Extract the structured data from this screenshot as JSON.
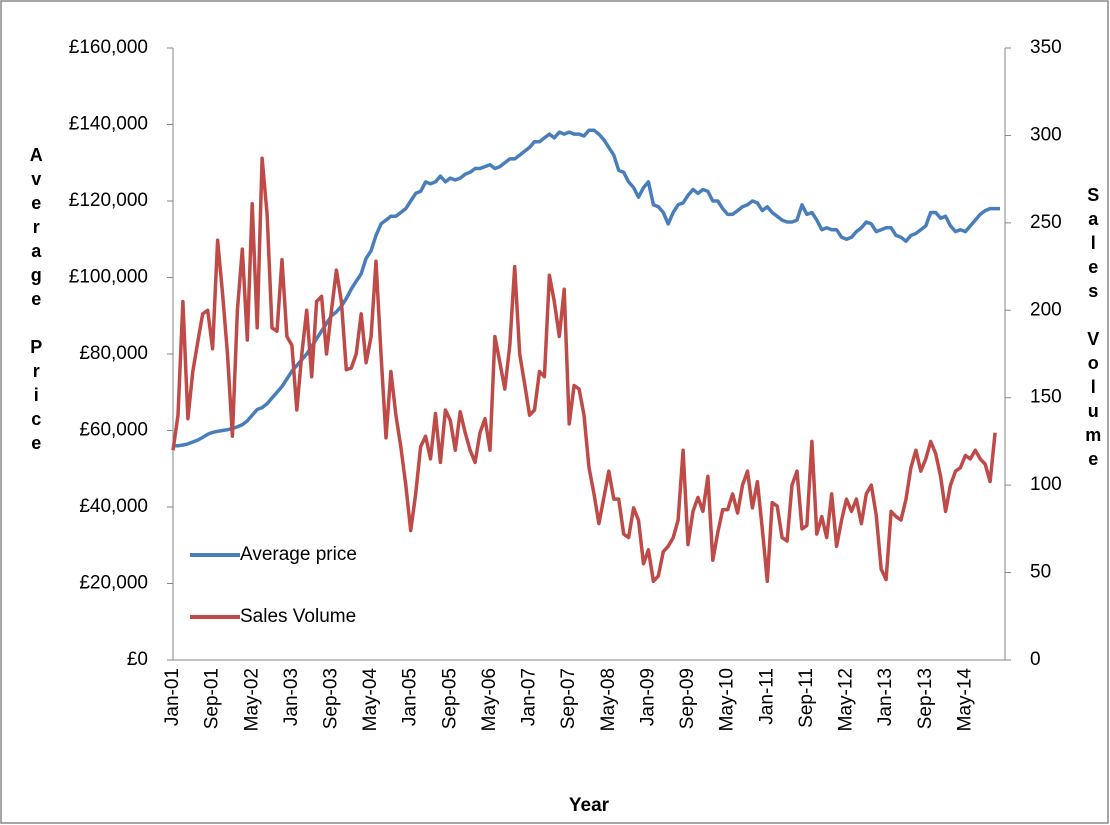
{
  "chart_data": {
    "type": "line",
    "x_label": "Year",
    "y_label": "Average Price",
    "y2_label": "Sales Volume",
    "categories": [
      "Jan-01",
      null,
      null,
      null,
      null,
      null,
      null,
      null,
      "Sep-01",
      null,
      null,
      null,
      null,
      null,
      null,
      null,
      "May-02",
      null,
      null,
      null,
      null,
      null,
      null,
      null,
      "Jan-03",
      null,
      null,
      null,
      null,
      null,
      null,
      null,
      "Sep-03",
      null,
      null,
      null,
      null,
      null,
      null,
      null,
      "May-04",
      null,
      null,
      null,
      null,
      null,
      null,
      null,
      "Jan-05",
      null,
      null,
      null,
      null,
      null,
      null,
      null,
      "Sep-05",
      null,
      null,
      null,
      null,
      null,
      null,
      null,
      "May-06",
      null,
      null,
      null,
      null,
      null,
      null,
      null,
      "Jan-07",
      null,
      null,
      null,
      null,
      null,
      null,
      null,
      "Sep-07",
      null,
      null,
      null,
      null,
      null,
      null,
      null,
      "May-08",
      null,
      null,
      null,
      null,
      null,
      null,
      null,
      "Jan-09",
      null,
      null,
      null,
      null,
      null,
      null,
      null,
      "Sep-09",
      null,
      null,
      null,
      null,
      null,
      null,
      null,
      "May-10",
      null,
      null,
      null,
      null,
      null,
      null,
      null,
      "Jan-11",
      null,
      null,
      null,
      null,
      null,
      null,
      null,
      "Sep-11",
      null,
      null,
      null,
      null,
      null,
      null,
      null,
      "May-12",
      null,
      null,
      null,
      null,
      null,
      null,
      null,
      "Jan-13",
      null,
      null,
      null,
      null,
      null,
      null,
      null,
      "Sep-13",
      null,
      null,
      null,
      null,
      null,
      null,
      null,
      "May-14",
      null,
      null,
      null,
      null,
      null,
      null,
      null
    ],
    "series": [
      {
        "name": "Average price",
        "color": "#4a7ebb",
        "values": [
          56000,
          56000,
          56200,
          56500,
          57000,
          57500,
          58200,
          59000,
          59500,
          59800,
          60000,
          60200,
          60500,
          61000,
          61500,
          62500,
          64000,
          65500,
          66000,
          67000,
          68500,
          70000,
          71500,
          73500,
          75500,
          77000,
          78500,
          80000,
          82000,
          84000,
          86000,
          88000,
          90000,
          91000,
          92500,
          94500,
          97000,
          99000,
          101000,
          105000,
          107000,
          111000,
          114000,
          115000,
          116000,
          116000,
          117000,
          118000,
          120000,
          122000,
          122500,
          125000,
          124500,
          125000,
          126500,
          125000,
          126000,
          125500,
          126000,
          127000,
          127500,
          128500,
          128500,
          129000,
          129500,
          128500,
          129000,
          130000,
          131000,
          131000,
          132000,
          133000,
          134000,
          135500,
          135500,
          136500,
          137500,
          136500,
          138000,
          137500,
          138000,
          137500,
          137500,
          137000,
          138500,
          138500,
          137500,
          136000,
          134000,
          132000,
          128000,
          127500,
          125000,
          123500,
          121000,
          123500,
          125000,
          119000,
          118500,
          117000,
          114000,
          117000,
          119000,
          119500,
          121500,
          123000,
          122000,
          123000,
          122500,
          120000,
          120000,
          118000,
          116500,
          116500,
          117500,
          118500,
          119000,
          120000,
          119500,
          117500,
          118500,
          117000,
          116000,
          115000,
          114500,
          114500,
          115000,
          119000,
          116500,
          117000,
          115000,
          112500,
          113000,
          112500,
          112500,
          110500,
          110000,
          110500,
          112000,
          113000,
          114500,
          114000,
          112000,
          112500,
          113000,
          113000,
          111000,
          110500,
          109500,
          111000,
          111500,
          112500,
          113500,
          117000,
          117000,
          115500,
          116000,
          113500,
          112000,
          112500,
          112000,
          113500,
          115000,
          116500,
          117500,
          118000,
          118000,
          118000
        ]
      },
      {
        "name": "Sales Volume",
        "color": "#be4b48",
        "axis": "y2",
        "values": [
          120,
          140,
          205,
          138,
          165,
          182,
          198,
          200,
          178,
          240,
          210,
          175,
          128,
          200,
          235,
          183,
          261,
          190,
          287,
          255,
          190,
          188,
          229,
          185,
          180,
          143,
          175,
          200,
          162,
          205,
          208,
          175,
          200,
          223,
          205,
          166,
          167,
          175,
          198,
          170,
          185,
          228,
          175,
          127,
          165,
          140,
          122,
          100,
          74,
          95,
          122,
          128,
          115,
          141,
          113,
          143,
          137,
          120,
          142,
          130,
          120,
          113,
          130,
          138,
          120,
          185,
          170,
          155,
          180,
          225,
          175,
          158,
          140,
          143,
          165,
          162,
          220,
          205,
          185,
          212,
          135,
          157,
          155,
          140,
          110,
          95,
          78,
          93,
          108,
          92,
          92,
          72,
          70,
          87,
          80,
          55,
          63,
          45,
          48,
          62,
          65,
          70,
          80,
          120,
          66,
          85,
          93,
          85,
          105,
          57,
          73,
          86,
          86,
          95,
          84,
          100,
          108,
          87,
          102,
          75,
          45,
          90,
          88,
          70,
          68,
          100,
          108,
          75,
          77,
          125,
          72,
          82,
          70,
          95,
          65,
          80,
          92,
          85,
          92,
          78,
          95,
          100,
          83,
          52,
          46,
          85,
          82,
          80,
          92,
          110,
          120,
          108,
          115,
          125,
          118,
          105,
          85,
          100,
          108,
          110,
          117,
          115,
          120,
          115,
          112,
          102,
          130,
          null
        ]
      }
    ],
    "ylim": [
      0,
      160000
    ],
    "yticks": [
      {
        "value": 0,
        "label": "£0"
      },
      {
        "value": 20000,
        "label": "£20,000"
      },
      {
        "value": 40000,
        "label": "£40,000"
      },
      {
        "value": 60000,
        "label": "£60,000"
      },
      {
        "value": 80000,
        "label": "£80,000"
      },
      {
        "value": 100000,
        "label": "£100,000"
      },
      {
        "value": 120000,
        "label": "£120,000"
      },
      {
        "value": 140000,
        "label": "£140,000"
      },
      {
        "value": 160000,
        "label": "£160,000"
      }
    ],
    "y2lim": [
      0,
      350
    ],
    "y2ticks": [
      0,
      50,
      100,
      150,
      200,
      250,
      300,
      350
    ],
    "grid": false,
    "legend": "lower left"
  }
}
